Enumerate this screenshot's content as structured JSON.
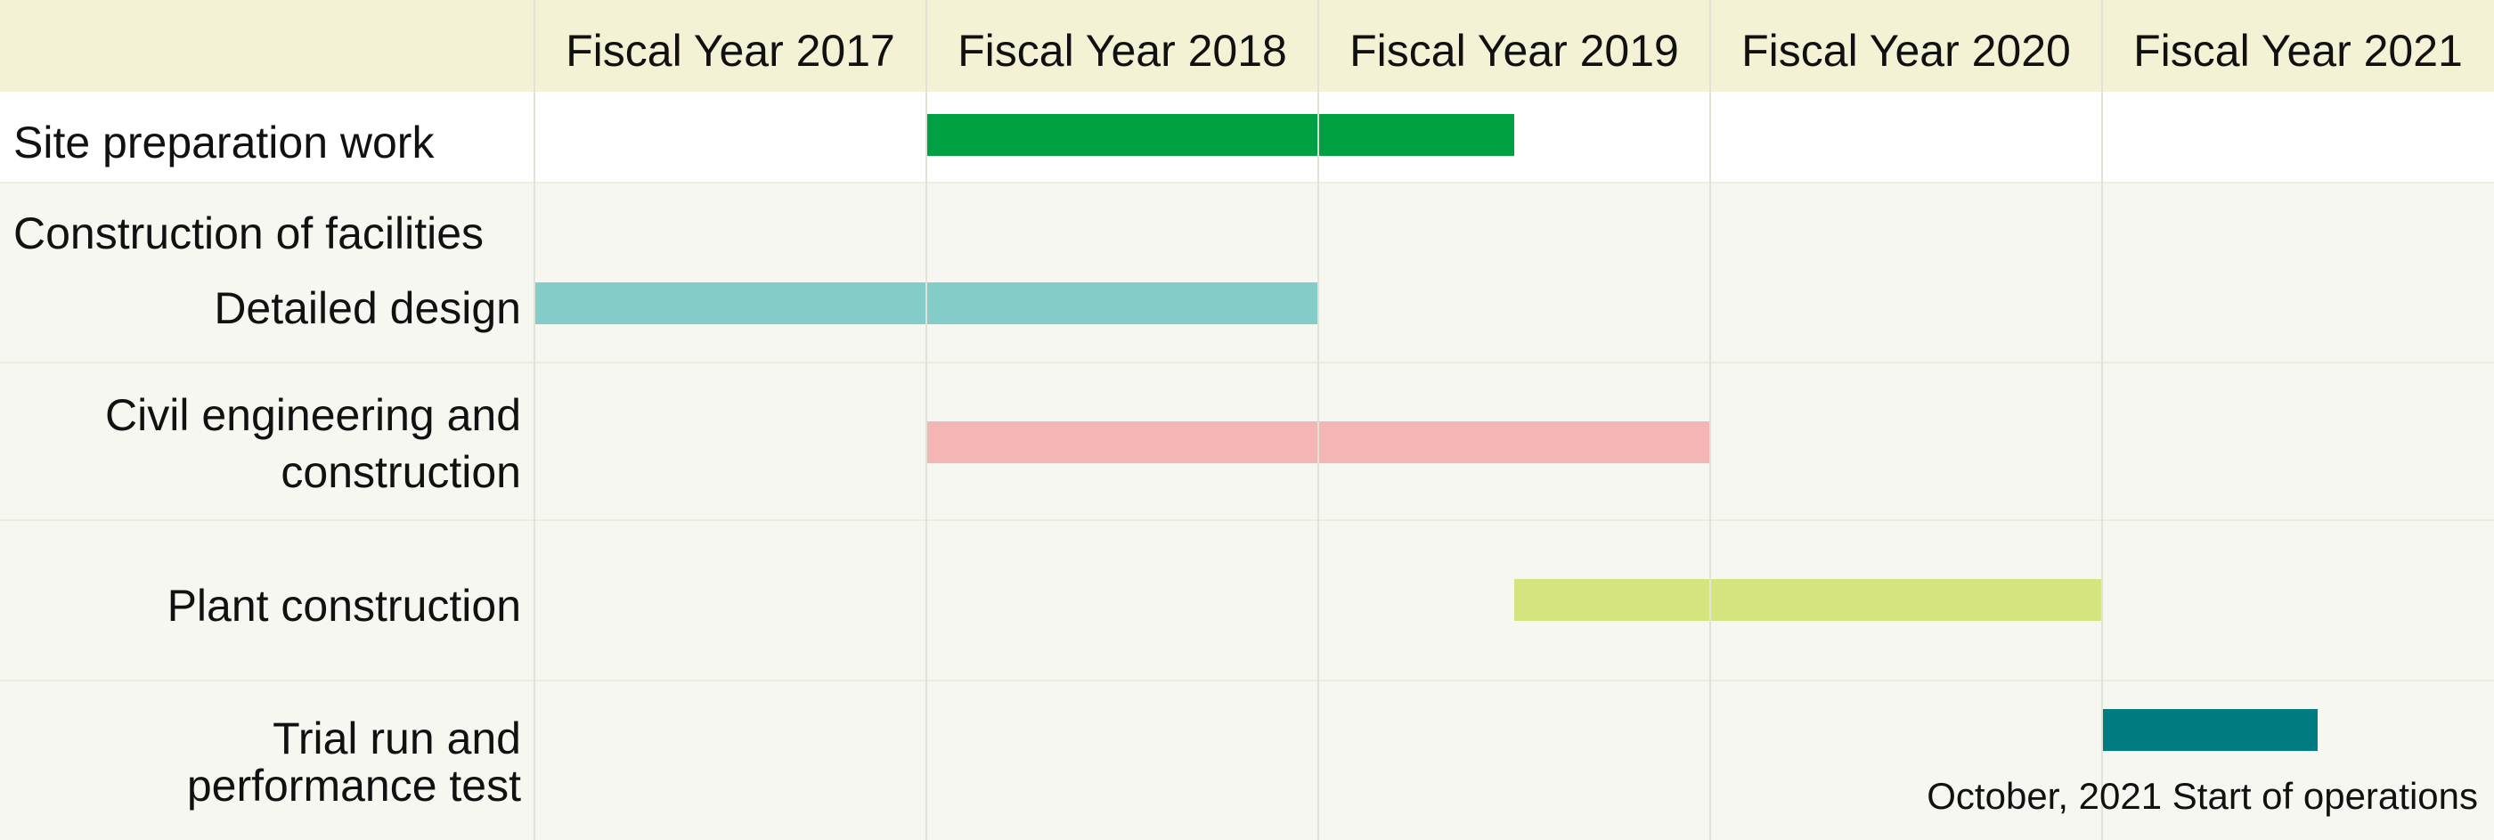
{
  "chart_data": {
    "type": "gantt",
    "title": "",
    "columns": [
      "Fiscal Year 2017",
      "Fiscal Year 2018",
      "Fiscal Year 2019",
      "Fiscal Year 2020",
      "Fiscal Year 2021"
    ],
    "x_range": [
      0,
      5
    ],
    "x_unit": "fiscal years from start of Fiscal Year 2017",
    "grid": true,
    "tasks": [
      {
        "label": "Site preparation work",
        "start": 1.0,
        "end": 2.5,
        "color": "#00a142"
      },
      {
        "label": "Construction of facilities",
        "group_header": true
      },
      {
        "label": "Detailed design",
        "start": 0.0,
        "end": 2.0,
        "color": "#84ccc8"
      },
      {
        "label": "Civil engineering and construction",
        "label_lines": [
          "Civil engineering and",
          "construction"
        ],
        "start": 1.0,
        "end": 3.0,
        "color": "#f4b6b5"
      },
      {
        "label": "Plant construction",
        "start": 2.5,
        "end": 4.0,
        "color": "#d6e480"
      },
      {
        "label": "Trial run and performance test",
        "label_lines": [
          "Trial run and",
          "performance test"
        ],
        "start": 4.0,
        "end": 4.55,
        "color": "#007b80"
      }
    ],
    "annotations": [
      {
        "text": "October, 2021 Start of operations",
        "position": "bottom-right"
      }
    ]
  }
}
